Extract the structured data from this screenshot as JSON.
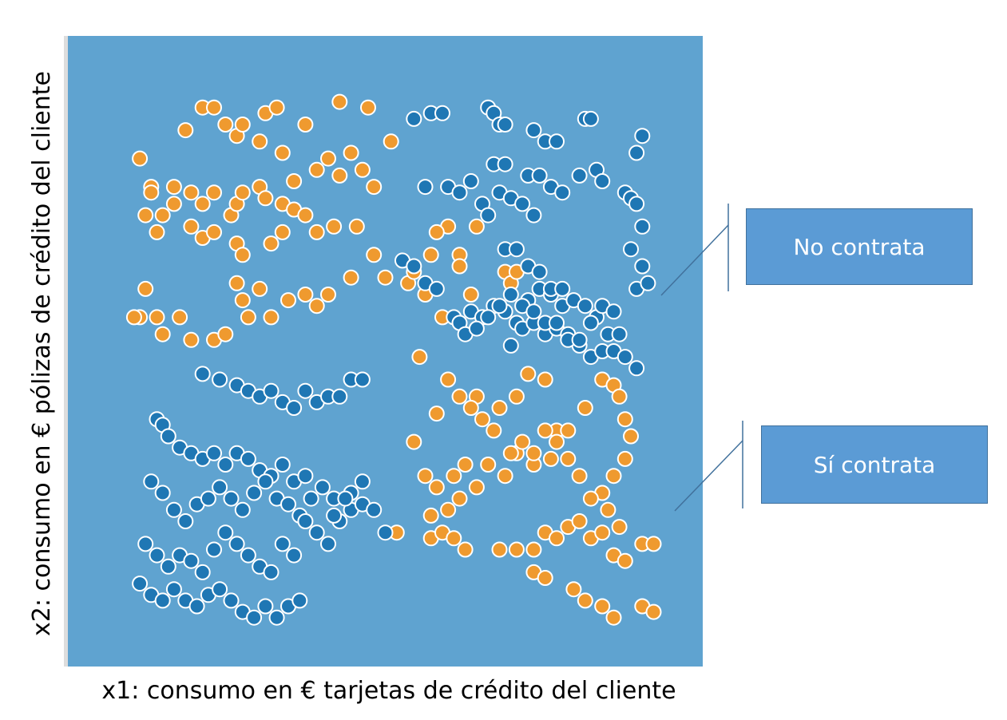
{
  "chart_data": {
    "type": "scatter",
    "title": "",
    "xlabel": "x1: consumo en € tarjetas de crédito del cliente",
    "ylabel": "x2: consumo en € pólizas de crédito del cliente",
    "xlim": [
      0,
      100
    ],
    "ylim": [
      0,
      100
    ],
    "grid": false,
    "colors": {
      "plot_background": "#5fa3d0",
      "orange": "#ef9a2f",
      "blue": "#1f77b4",
      "point_stroke": "#ffffff"
    },
    "series": [
      {
        "color": "orange",
        "points": [
          [
            7,
            84
          ],
          [
            9,
            79
          ],
          [
            8,
            74
          ],
          [
            9,
            78
          ],
          [
            13,
            79
          ],
          [
            16,
            78
          ],
          [
            18,
            76
          ],
          [
            20,
            78
          ],
          [
            23,
            74
          ],
          [
            24,
            76
          ],
          [
            25,
            78
          ],
          [
            28,
            79
          ],
          [
            29,
            77
          ],
          [
            32,
            76
          ],
          [
            8,
            61
          ],
          [
            7,
            56
          ],
          [
            6,
            56
          ],
          [
            10,
            56
          ],
          [
            11,
            53
          ],
          [
            14,
            56
          ],
          [
            16,
            52
          ],
          [
            20,
            52
          ],
          [
            22,
            53
          ],
          [
            24,
            62
          ],
          [
            25,
            59
          ],
          [
            26,
            56
          ],
          [
            28,
            61
          ],
          [
            30,
            56
          ],
          [
            33,
            59
          ],
          [
            10,
            71
          ],
          [
            11,
            74
          ],
          [
            13,
            76
          ],
          [
            16,
            72
          ],
          [
            18,
            70
          ],
          [
            20,
            71
          ],
          [
            24,
            69
          ],
          [
            25,
            67
          ],
          [
            30,
            69
          ],
          [
            32,
            71
          ],
          [
            34,
            75
          ],
          [
            36,
            74
          ],
          [
            38,
            71
          ],
          [
            41,
            72
          ],
          [
            45,
            72
          ],
          [
            24,
            88
          ],
          [
            28,
            87
          ],
          [
            32,
            85
          ],
          [
            34,
            80
          ],
          [
            38,
            82
          ],
          [
            40,
            84
          ],
          [
            42,
            81
          ],
          [
            44,
            85
          ],
          [
            46,
            82
          ],
          [
            48,
            79
          ],
          [
            51,
            87
          ],
          [
            15,
            89
          ],
          [
            18,
            93
          ],
          [
            20,
            93
          ],
          [
            22,
            90
          ],
          [
            25,
            90
          ],
          [
            29,
            92
          ],
          [
            31,
            93
          ],
          [
            36,
            90
          ],
          [
            42,
            94
          ],
          [
            47,
            93
          ],
          [
            36,
            60
          ],
          [
            38,
            58
          ],
          [
            40,
            60
          ],
          [
            44,
            63
          ],
          [
            48,
            67
          ],
          [
            50,
            63
          ],
          [
            54,
            62
          ],
          [
            58,
            67
          ],
          [
            61,
            72
          ],
          [
            59,
            71
          ],
          [
            63,
            67
          ],
          [
            55,
            64
          ],
          [
            57,
            60
          ],
          [
            60,
            56
          ],
          [
            63,
            65
          ],
          [
            65,
            60
          ],
          [
            66,
            72
          ],
          [
            71,
            64
          ],
          [
            72,
            62
          ],
          [
            73,
            64
          ],
          [
            66,
            26
          ],
          [
            63,
            24
          ],
          [
            61,
            22
          ],
          [
            58,
            17
          ],
          [
            52,
            18
          ],
          [
            55,
            34
          ],
          [
            57,
            28
          ],
          [
            59,
            26
          ],
          [
            62,
            28
          ],
          [
            64,
            30
          ],
          [
            68,
            30
          ],
          [
            71,
            28
          ],
          [
            73,
            32
          ],
          [
            76,
            30
          ],
          [
            79,
            31
          ],
          [
            66,
            42
          ],
          [
            70,
            40
          ],
          [
            73,
            42
          ],
          [
            75,
            46
          ],
          [
            78,
            45
          ],
          [
            80,
            36
          ],
          [
            82,
            36
          ],
          [
            85,
            40
          ],
          [
            88,
            45
          ],
          [
            90,
            44
          ],
          [
            91,
            42
          ],
          [
            92,
            38
          ],
          [
            93,
            35
          ],
          [
            92,
            31
          ],
          [
            90,
            28
          ],
          [
            88,
            25
          ],
          [
            56,
            49
          ],
          [
            59,
            39
          ],
          [
            61,
            45
          ],
          [
            63,
            42
          ],
          [
            65,
            40
          ],
          [
            67,
            38
          ],
          [
            69,
            36
          ],
          [
            72,
            32
          ],
          [
            74,
            34
          ],
          [
            76,
            32
          ],
          [
            78,
            36
          ],
          [
            80,
            34
          ],
          [
            82,
            31
          ],
          [
            84,
            28
          ],
          [
            86,
            24
          ],
          [
            89,
            22
          ],
          [
            91,
            19
          ],
          [
            76,
            15
          ],
          [
            78,
            18
          ],
          [
            80,
            17
          ],
          [
            82,
            19
          ],
          [
            84,
            20
          ],
          [
            86,
            17
          ],
          [
            88,
            18
          ],
          [
            90,
            14
          ],
          [
            92,
            13
          ],
          [
            95,
            16
          ],
          [
            97,
            16
          ],
          [
            58,
            21
          ],
          [
            60,
            18
          ],
          [
            62,
            17
          ],
          [
            64,
            15
          ],
          [
            70,
            15
          ],
          [
            73,
            15
          ],
          [
            76,
            11
          ],
          [
            78,
            10
          ],
          [
            83,
            8
          ],
          [
            85,
            6
          ],
          [
            88,
            5
          ],
          [
            90,
            3
          ],
          [
            95,
            5
          ],
          [
            97,
            4
          ]
        ]
      },
      {
        "color": "blue",
        "points": [
          [
            55,
            91
          ],
          [
            58,
            92
          ],
          [
            60,
            92
          ],
          [
            68,
            93
          ],
          [
            69,
            92
          ],
          [
            70,
            90
          ],
          [
            71,
            90
          ],
          [
            76,
            89
          ],
          [
            78,
            87
          ],
          [
            80,
            87
          ],
          [
            85,
            91
          ],
          [
            86,
            91
          ],
          [
            94,
            85
          ],
          [
            95,
            88
          ],
          [
            69,
            83
          ],
          [
            71,
            83
          ],
          [
            75,
            81
          ],
          [
            77,
            81
          ],
          [
            79,
            79
          ],
          [
            81,
            78
          ],
          [
            84,
            81
          ],
          [
            87,
            82
          ],
          [
            88,
            80
          ],
          [
            92,
            78
          ],
          [
            93,
            77
          ],
          [
            94,
            76
          ],
          [
            95,
            72
          ],
          [
            57,
            79
          ],
          [
            61,
            79
          ],
          [
            63,
            78
          ],
          [
            65,
            80
          ],
          [
            67,
            76
          ],
          [
            68,
            74
          ],
          [
            70,
            78
          ],
          [
            72,
            77
          ],
          [
            74,
            76
          ],
          [
            76,
            74
          ],
          [
            53,
            66
          ],
          [
            55,
            65
          ],
          [
            57,
            62
          ],
          [
            59,
            61
          ],
          [
            62,
            56
          ],
          [
            63,
            55
          ],
          [
            65,
            57
          ],
          [
            67,
            56
          ],
          [
            69,
            58
          ],
          [
            71,
            57
          ],
          [
            73,
            55
          ],
          [
            75,
            59
          ],
          [
            77,
            61
          ],
          [
            79,
            60
          ],
          [
            81,
            58
          ],
          [
            71,
            68
          ],
          [
            73,
            68
          ],
          [
            75,
            65
          ],
          [
            77,
            64
          ],
          [
            79,
            61
          ],
          [
            81,
            61
          ],
          [
            83,
            59
          ],
          [
            85,
            58
          ],
          [
            87,
            56
          ],
          [
            89,
            53
          ],
          [
            91,
            53
          ],
          [
            94,
            61
          ],
          [
            96,
            62
          ],
          [
            93,
            68
          ],
          [
            95,
            65
          ],
          [
            72,
            51
          ],
          [
            74,
            54
          ],
          [
            76,
            55
          ],
          [
            78,
            53
          ],
          [
            80,
            54
          ],
          [
            82,
            53
          ],
          [
            84,
            51
          ],
          [
            86,
            49
          ],
          [
            88,
            50
          ],
          [
            90,
            50
          ],
          [
            92,
            49
          ],
          [
            94,
            47
          ],
          [
            64,
            53
          ],
          [
            66,
            54
          ],
          [
            68,
            56
          ],
          [
            70,
            58
          ],
          [
            72,
            60
          ],
          [
            74,
            58
          ],
          [
            76,
            57
          ],
          [
            78,
            55
          ],
          [
            80,
            55
          ],
          [
            82,
            52
          ],
          [
            84,
            52
          ],
          [
            86,
            55
          ],
          [
            88,
            58
          ],
          [
            90,
            57
          ],
          [
            18,
            46
          ],
          [
            21,
            45
          ],
          [
            24,
            44
          ],
          [
            26,
            43
          ],
          [
            28,
            42
          ],
          [
            30,
            43
          ],
          [
            32,
            41
          ],
          [
            34,
            40
          ],
          [
            36,
            43
          ],
          [
            38,
            41
          ],
          [
            40,
            42
          ],
          [
            42,
            42
          ],
          [
            44,
            45
          ],
          [
            46,
            45
          ],
          [
            10,
            38
          ],
          [
            11,
            37
          ],
          [
            12,
            35
          ],
          [
            14,
            33
          ],
          [
            16,
            32
          ],
          [
            18,
            31
          ],
          [
            20,
            32
          ],
          [
            22,
            30
          ],
          [
            24,
            32
          ],
          [
            26,
            31
          ],
          [
            28,
            29
          ],
          [
            30,
            28
          ],
          [
            32,
            30
          ],
          [
            34,
            27
          ],
          [
            36,
            28
          ],
          [
            9,
            27
          ],
          [
            11,
            25
          ],
          [
            13,
            22
          ],
          [
            15,
            20
          ],
          [
            17,
            23
          ],
          [
            19,
            24
          ],
          [
            21,
            26
          ],
          [
            23,
            24
          ],
          [
            25,
            22
          ],
          [
            27,
            25
          ],
          [
            29,
            27
          ],
          [
            31,
            24
          ],
          [
            33,
            23
          ],
          [
            35,
            21
          ],
          [
            37,
            24
          ],
          [
            39,
            26
          ],
          [
            41,
            24
          ],
          [
            8,
            16
          ],
          [
            10,
            14
          ],
          [
            12,
            12
          ],
          [
            14,
            14
          ],
          [
            16,
            13
          ],
          [
            18,
            11
          ],
          [
            20,
            15
          ],
          [
            22,
            18
          ],
          [
            24,
            16
          ],
          [
            26,
            14
          ],
          [
            28,
            12
          ],
          [
            30,
            11
          ],
          [
            32,
            16
          ],
          [
            34,
            14
          ],
          [
            7,
            9
          ],
          [
            9,
            7
          ],
          [
            11,
            6
          ],
          [
            13,
            8
          ],
          [
            15,
            6
          ],
          [
            17,
            5
          ],
          [
            19,
            7
          ],
          [
            21,
            8
          ],
          [
            23,
            6
          ],
          [
            25,
            4
          ],
          [
            27,
            3
          ],
          [
            29,
            5
          ],
          [
            31,
            3
          ],
          [
            33,
            5
          ],
          [
            35,
            6
          ],
          [
            36,
            20
          ],
          [
            38,
            18
          ],
          [
            40,
            16
          ],
          [
            42,
            20
          ],
          [
            44,
            22
          ],
          [
            46,
            23
          ],
          [
            48,
            22
          ],
          [
            50,
            18
          ],
          [
            44,
            25
          ],
          [
            46,
            27
          ],
          [
            41,
            21
          ],
          [
            43,
            24
          ]
        ]
      }
    ],
    "annotations": [
      {
        "text": "No contrata",
        "refers_to": "blue"
      },
      {
        "text": "Sí contrata",
        "refers_to": "orange"
      }
    ]
  }
}
